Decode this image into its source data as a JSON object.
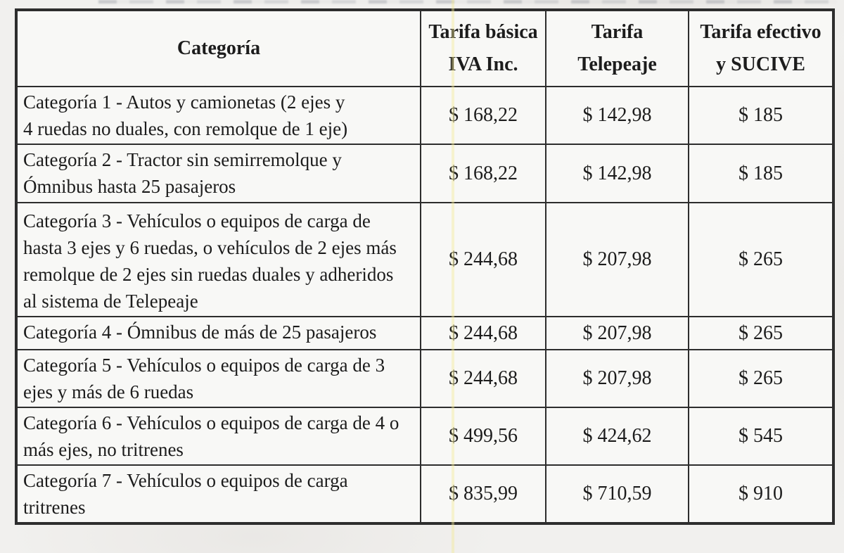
{
  "page": {
    "background_color": "#f1f0ee",
    "scan_artifact_yellow_line_color": "#f3ea96",
    "border_color": "#2d2d2d",
    "text_color": "#1c1c1c"
  },
  "table": {
    "headers": [
      {
        "lines": [
          "Categoría"
        ]
      },
      {
        "lines": [
          "Tarifa básica",
          "IVA Inc."
        ]
      },
      {
        "lines": [
          "Tarifa",
          "Telepeaje"
        ]
      },
      {
        "lines": [
          "Tarifa efectivo",
          "y SUCIVE"
        ]
      }
    ],
    "rows": [
      {
        "category": "Categoría 1 - Autos y camionetas (2 ejes y 4 ruedas no duales, con remolque de 1 eje)",
        "category_lines": [
          "Categoría 1 - Autos y camionetas (2 ejes y",
          "4 ruedas no duales, con remolque de 1 eje)"
        ],
        "basica": "$ 168,22",
        "telepeaje": "$ 142,98",
        "efectivo": "$ 185"
      },
      {
        "category": "Categoría 2 - Tractor sin semirremolque y Ómnibus hasta 25 pasajeros",
        "category_lines": [
          "Categoría 2 - Tractor sin semirremolque y",
          "Ómnibus hasta 25 pasajeros"
        ],
        "basica": "$ 168,22",
        "telepeaje": "$ 142,98",
        "efectivo": "$ 185"
      },
      {
        "category": "Categoría 3 - Vehículos o equipos de carga de hasta 3 ejes y 6 ruedas, o vehículos de 2 ejes más remolque de 2 ejes sin ruedas duales y adheridos al sistema de Telepeaje",
        "category_lines": [
          "Categoría 3 - Vehículos o equipos de carga de",
          "hasta 3 ejes y 6 ruedas, o vehículos de 2 ejes más",
          "remolque de 2 ejes sin ruedas duales y adheridos",
          "al sistema de Telepeaje"
        ],
        "basica": "$ 244,68",
        "telepeaje": "$ 207,98",
        "efectivo": "$ 265"
      },
      {
        "category": "Categoría 4 - Ómnibus de más de 25 pasajeros",
        "category_lines": [
          "Categoría 4 - Ómnibus de más de 25 pasajeros"
        ],
        "basica": "$ 244,68",
        "telepeaje": "$ 207,98",
        "efectivo": "$ 265"
      },
      {
        "category": "Categoría 5 - Vehículos o equipos de carga de 3 ejes y más de 6 ruedas",
        "category_lines": [
          "Categoría 5 - Vehículos o equipos de carga de 3",
          "ejes y más de 6 ruedas"
        ],
        "basica": "$ 244,68",
        "telepeaje": "$ 207,98",
        "efectivo": "$ 265"
      },
      {
        "category": "Categoría 6 - Vehículos o equipos de carga de 4 o más ejes, no tritrenes",
        "category_lines": [
          "Categoría 6 - Vehículos o equipos de carga de 4 o",
          "más ejes, no tritrenes"
        ],
        "basica": "$ 499,56",
        "telepeaje": "$ 424,62",
        "efectivo": "$ 545"
      },
      {
        "category": "Categoría 7 - Vehículos o equipos de carga tritrenes",
        "category_lines": [
          "Categoría 7 - Vehículos o equipos de carga",
          "tritrenes"
        ],
        "basica": "$ 835,99",
        "telepeaje": "$ 710,59",
        "efectivo": "$ 910"
      }
    ]
  }
}
